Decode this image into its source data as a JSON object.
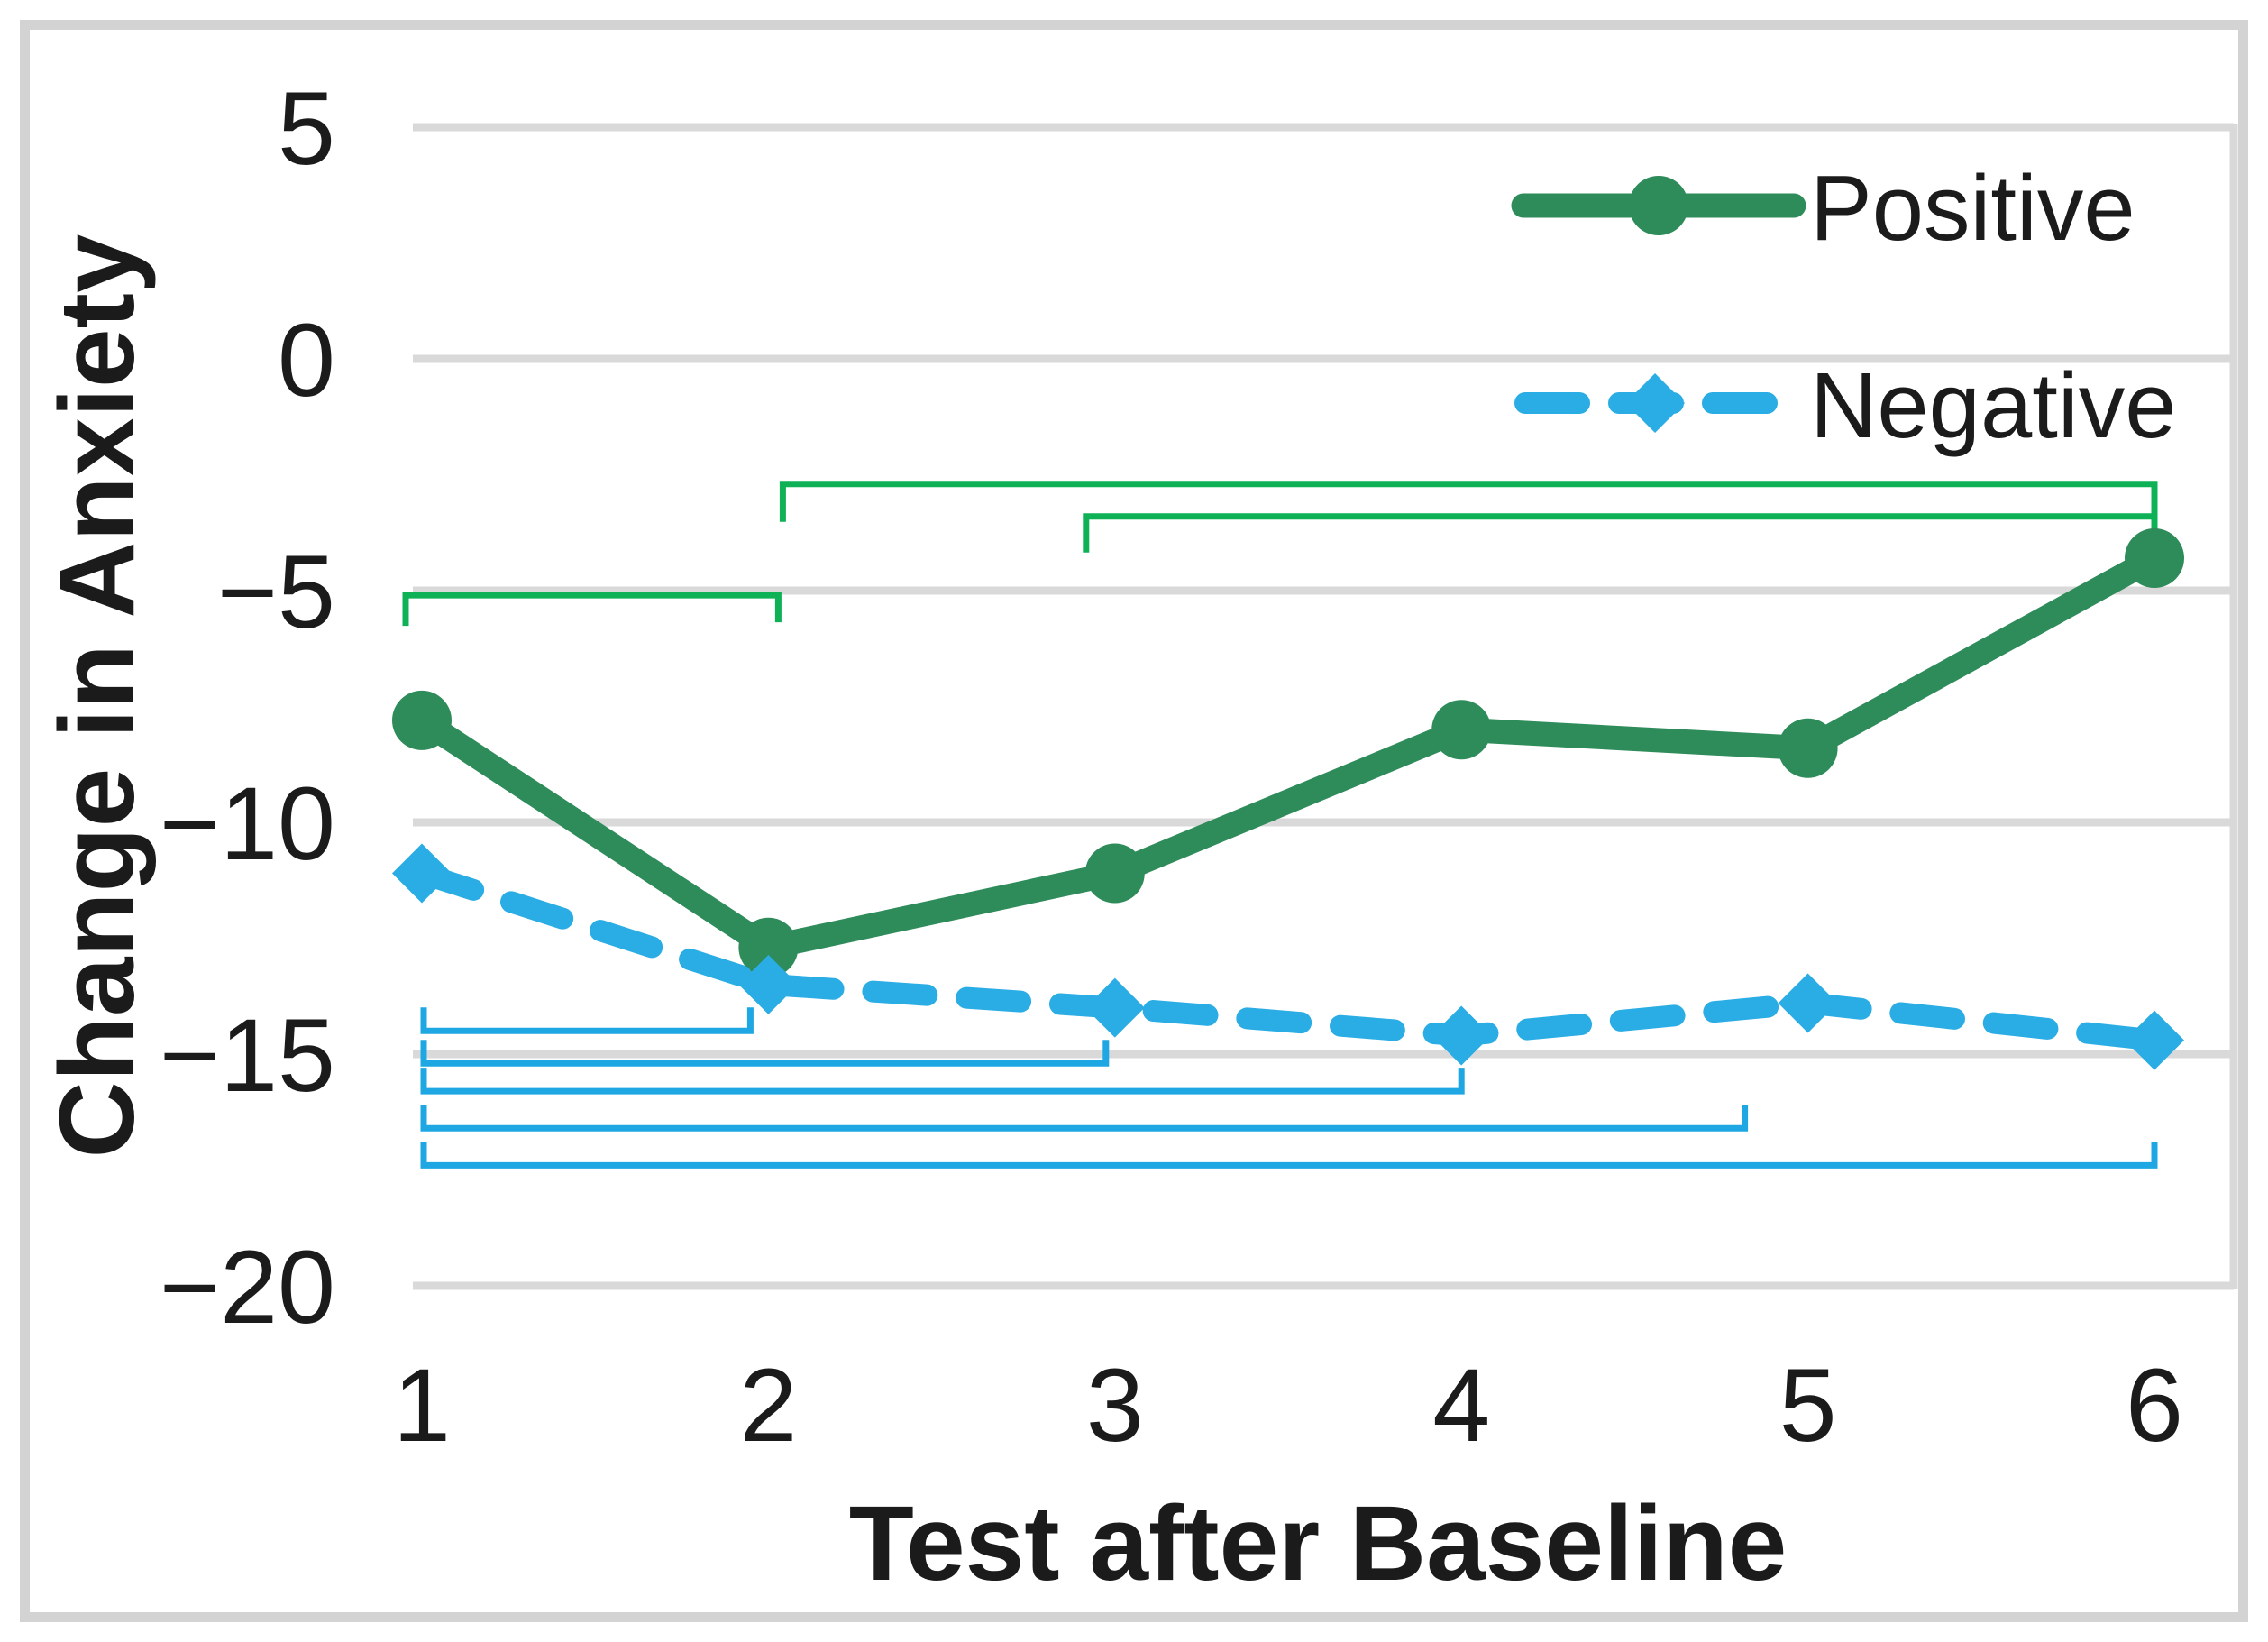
{
  "chart_data": {
    "type": "line",
    "title": "",
    "xlabel": "Test after Baseline",
    "ylabel": "Change in Anxiety",
    "categories": [
      1,
      2,
      3,
      4,
      5,
      6
    ],
    "x_tick_labels": [
      "1",
      "2",
      "3",
      "4",
      "5",
      "6"
    ],
    "y_ticks": [
      5,
      0,
      -5,
      -10,
      -15,
      -20
    ],
    "y_tick_labels": [
      "5",
      "0",
      "−5",
      "−10",
      "−15",
      "−20"
    ],
    "ylim": [
      -20,
      5
    ],
    "grid": true,
    "legend_position": "upper right",
    "series": [
      {
        "name": "Positive",
        "color": "#2e8b5a",
        "line_style": "solid",
        "marker": "circle",
        "values": [
          -7.8,
          -12.7,
          -11.1,
          -8.0,
          -8.4,
          -4.3
        ]
      },
      {
        "name": "Negative",
        "color": "#2aace4",
        "line_style": "dashed",
        "marker": "diamond",
        "values": [
          -11.1,
          -13.5,
          -14.0,
          -14.6,
          -13.9,
          -14.7
        ]
      }
    ],
    "significance_brackets": {
      "positive": {
        "color": "#0fb157",
        "side": "above",
        "pairs": [
          {
            "from": 1,
            "to": 2,
            "level": -5.1
          },
          {
            "from": 2,
            "to": 6,
            "level": -2.7
          },
          {
            "from": 3,
            "to": 6,
            "level": -3.4
          }
        ]
      },
      "negative": {
        "color": "#1ea7e2",
        "side": "below",
        "pairs": [
          {
            "from": 1,
            "to": 2,
            "level": -14.5
          },
          {
            "from": 1,
            "to": 3,
            "level": -15.2
          },
          {
            "from": 1,
            "to": 4,
            "level": -15.8
          },
          {
            "from": 1,
            "to": 5,
            "level": -16.6
          },
          {
            "from": 1,
            "to": 6,
            "level": -17.4
          }
        ]
      }
    },
    "legend": [
      {
        "label": "Positive"
      },
      {
        "label": "Negative"
      }
    ],
    "colors": {
      "gridline": "#d9d9d9",
      "frame": "#d3d3d3",
      "text": "#1b1b1b"
    }
  }
}
